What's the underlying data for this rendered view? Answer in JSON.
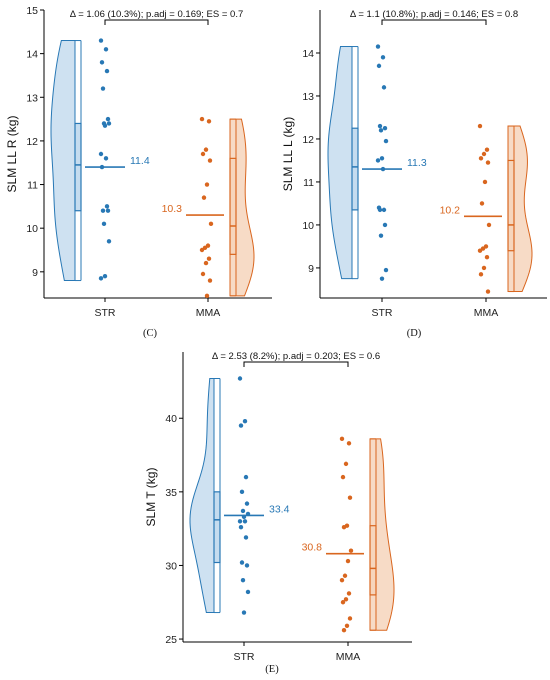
{
  "colors": {
    "str": "#2878b5",
    "str_fill": "#c5dcef",
    "mma": "#d9661f",
    "mma_fill": "#f6d5bc"
  },
  "chart_data": [
    {
      "type": "raincloud",
      "panel_label": "(C)",
      "ylabel": "SLM LL R (kg)",
      "ylim": [
        8.4,
        15
      ],
      "yticks": [
        "9",
        "10",
        "11",
        "12",
        "13",
        "14",
        "15"
      ],
      "categories": [
        "STR",
        "MMA"
      ],
      "annotation": "Δ = 1.06 (10.3%); p.adj = 0.169; ES = 0.7",
      "series": [
        {
          "name": "STR",
          "mean": 11.4,
          "mean_label": "11.4",
          "q1": 10.4,
          "median": 11.45,
          "q3": 12.4,
          "min": 8.8,
          "max": 14.3,
          "points": [
            14.3,
            14.1,
            13.8,
            13.6,
            13.2,
            12.5,
            12.4,
            12.4,
            12.35,
            11.7,
            11.6,
            11.4,
            10.5,
            10.4,
            10.4,
            10.1,
            9.7,
            8.9,
            8.85
          ]
        },
        {
          "name": "MMA",
          "mean": 10.3,
          "mean_label": "10.3",
          "q1": 9.4,
          "median": 10.05,
          "q3": 11.6,
          "min": 8.45,
          "max": 12.5,
          "points": [
            12.5,
            12.45,
            11.8,
            11.7,
            11.55,
            11.0,
            10.7,
            10.1,
            9.6,
            9.55,
            9.5,
            9.3,
            9.2,
            8.95,
            8.8,
            8.45
          ]
        }
      ]
    },
    {
      "type": "raincloud",
      "panel_label": "(D)",
      "ylabel": "SLM LL L (kg)",
      "ylim": [
        8.3,
        15
      ],
      "yticks": [
        "9",
        "10",
        "11",
        "12",
        "13",
        "14"
      ],
      "categories": [
        "STR",
        "MMA"
      ],
      "annotation": "Δ = 1.1 (10.8%); p.adj = 0.146; ES = 0.8",
      "series": [
        {
          "name": "STR",
          "mean": 11.3,
          "mean_label": "11.3",
          "q1": 10.35,
          "median": 11.35,
          "q3": 12.25,
          "min": 8.75,
          "max": 14.15,
          "points": [
            14.15,
            13.9,
            13.7,
            13.2,
            12.3,
            12.25,
            12.2,
            11.95,
            11.55,
            11.5,
            11.3,
            10.4,
            10.35,
            10.35,
            10.0,
            9.75,
            8.95,
            8.75
          ]
        },
        {
          "name": "MMA",
          "mean": 10.2,
          "mean_label": "10.2",
          "q1": 9.4,
          "median": 10.0,
          "q3": 11.5,
          "min": 8.45,
          "max": 12.3,
          "points": [
            12.3,
            11.75,
            11.65,
            11.55,
            11.45,
            11.0,
            10.5,
            10.0,
            9.5,
            9.45,
            9.4,
            9.25,
            9.0,
            8.85,
            8.45
          ]
        }
      ]
    },
    {
      "type": "raincloud",
      "panel_label": "(E)",
      "ylabel": "SLM T (kg)",
      "ylim": [
        24.8,
        44.5
      ],
      "yticks": [
        "25",
        "30",
        "35",
        "40"
      ],
      "categories": [
        "STR",
        "MMA"
      ],
      "annotation": "Δ = 2.53 (8.2%); p.adj = 0.203; ES = 0.6",
      "series": [
        {
          "name": "STR",
          "mean": 33.4,
          "mean_label": "33.4",
          "q1": 30.2,
          "median": 33.1,
          "q3": 35.0,
          "min": 26.8,
          "max": 42.7,
          "points": [
            42.7,
            39.8,
            39.5,
            36.0,
            35.0,
            34.2,
            33.7,
            33.5,
            33.3,
            33.0,
            33.0,
            32.6,
            31.9,
            30.2,
            30.0,
            29.0,
            28.2,
            26.8
          ]
        },
        {
          "name": "MMA",
          "mean": 30.8,
          "mean_label": "30.8",
          "q1": 28.0,
          "median": 29.8,
          "q3": 32.7,
          "min": 25.6,
          "max": 38.6,
          "points": [
            38.6,
            38.3,
            36.9,
            36.0,
            34.6,
            32.7,
            32.6,
            31.0,
            30.3,
            29.3,
            29.0,
            28.1,
            27.7,
            27.5,
            26.4,
            25.9,
            25.6
          ]
        }
      ]
    }
  ]
}
